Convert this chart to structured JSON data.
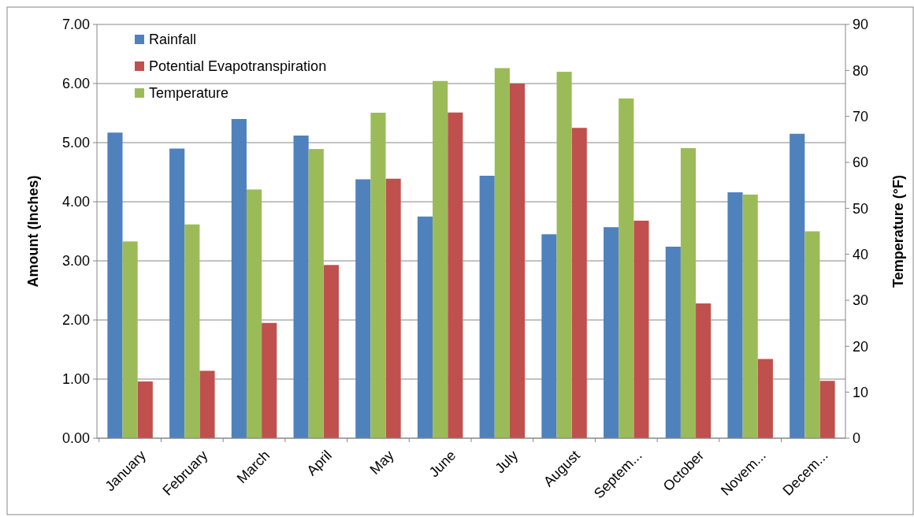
{
  "chart_data": {
    "type": "bar",
    "ylabel": "Amount (Inches)",
    "y2label": "Temperature (°F)",
    "categories": [
      "January",
      "February",
      "March",
      "April",
      "May",
      "June",
      "July",
      "August",
      "Septem...",
      "October",
      "Novem...",
      "Decem..."
    ],
    "series": [
      {
        "name": "Rainfall",
        "color": "#4f81bd",
        "values": [
          5.17,
          4.9,
          5.4,
          5.12,
          4.38,
          3.75,
          4.44,
          3.45,
          3.57,
          3.24,
          4.16,
          5.15
        ]
      },
      {
        "name": "Potential Evapotranspiration",
        "color": "#c0504d",
        "values": [
          0.96,
          1.14,
          1.95,
          2.93,
          4.39,
          5.51,
          6.0,
          5.25,
          3.68,
          2.28,
          1.34,
          0.97
        ]
      },
      {
        "name": "Temperature",
        "color": "#9bbb59",
        "axis": "y2",
        "values": [
          42.8,
          46.5,
          54.1,
          62.9,
          70.8,
          77.7,
          80.5,
          79.7,
          73.9,
          63.1,
          53.0,
          45.0
        ]
      }
    ],
    "ylim": [
      0,
      7
    ],
    "yticks": [
      {
        "value": 0,
        "label": "0.00"
      },
      {
        "value": 1,
        "label": "1.00"
      },
      {
        "value": 2,
        "label": "2.00"
      },
      {
        "value": 3,
        "label": "3.00"
      },
      {
        "value": 4,
        "label": "4.00"
      },
      {
        "value": 5,
        "label": "5.00"
      },
      {
        "value": 6,
        "label": "6.00"
      },
      {
        "value": 7,
        "label": "7.00"
      }
    ],
    "y2lim": [
      0,
      90
    ],
    "y2ticks": [
      0,
      10,
      20,
      30,
      40,
      50,
      60,
      70,
      80,
      90
    ],
    "grid": "y",
    "legend": "top left"
  }
}
